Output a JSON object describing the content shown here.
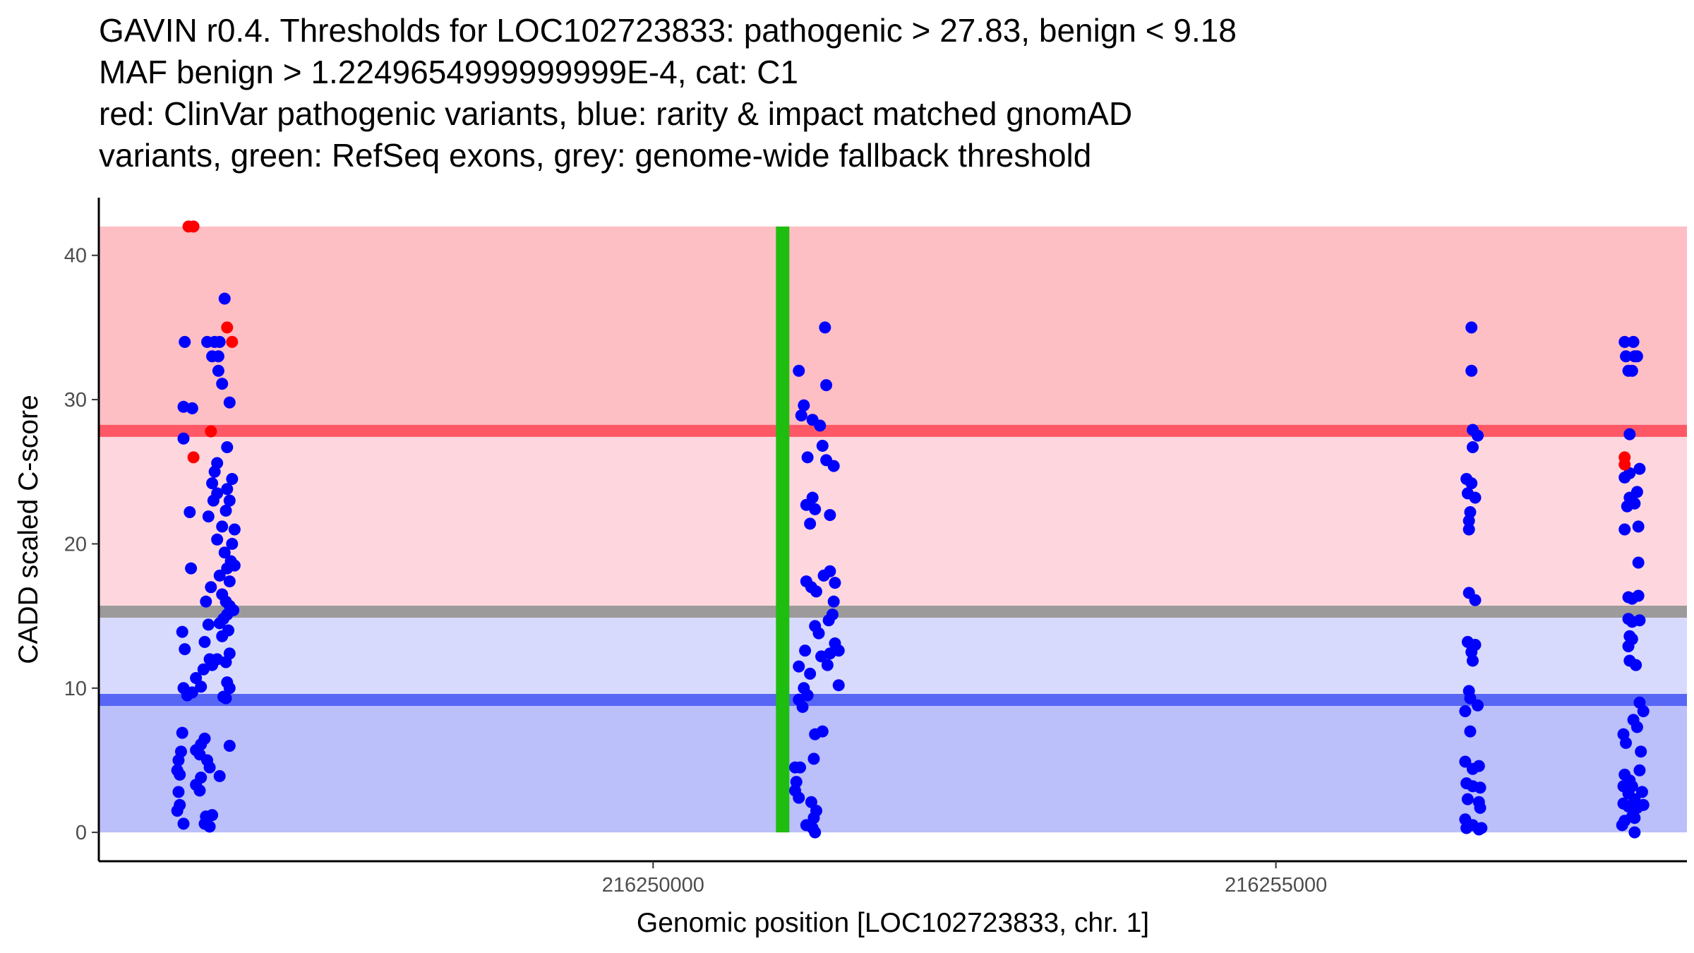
{
  "chart_data": {
    "type": "scatter",
    "title_lines": [
      "GAVIN r0.4. Thresholds for LOC102723833: pathogenic > 27.83, benign < 9.18",
      "MAF benign > 1.2249654999999999E-4, cat: C1",
      "red: ClinVar pathogenic variants, blue: rarity & impact matched gnomAD",
      "variants, green: RefSeq exons, grey: genome-wide fallback threshold"
    ],
    "xlabel": "Genomic position [LOC102723833, chr. 1]",
    "ylabel": "CADD scaled C-score",
    "xlim": [
      216245550,
      216258300
    ],
    "ylim": [
      -2,
      44
    ],
    "x_ticks": [
      216250000,
      216255000
    ],
    "x_tick_labels": [
      "216250000",
      "216255000"
    ],
    "y_ticks": [
      0,
      10,
      20,
      30,
      40
    ],
    "y_tick_labels": [
      "0",
      "10",
      "20",
      "30",
      "40"
    ],
    "grid": false,
    "bands": [
      {
        "name": "pathogenic-region",
        "y0": 27.83,
        "y1": 42,
        "color": "#fdbec4"
      },
      {
        "name": "grey-zone-upper",
        "y0": 15.3,
        "y1": 27.83,
        "color": "#fdd7dd"
      },
      {
        "name": "grey-zone-lower",
        "y0": 9.18,
        "y1": 15.3,
        "color": "#d8dafd"
      },
      {
        "name": "benign-region",
        "y0": 0,
        "y1": 9.18,
        "color": "#bbbffa"
      }
    ],
    "threshold_lines": [
      {
        "name": "pathogenic-threshold",
        "y": 27.83,
        "color": "#fe5867"
      },
      {
        "name": "fallback-threshold",
        "y": 15.3,
        "color": "#9c9a9a"
      },
      {
        "name": "benign-threshold",
        "y": 9.18,
        "color": "#5766f5"
      }
    ],
    "exons": [
      {
        "name": "refseq-exon",
        "x": 216251040,
        "y0": 0,
        "y1": 42,
        "color": "#1fbd0f"
      }
    ],
    "series": [
      {
        "name": "ClinVar pathogenic variants",
        "color": "#ff0000",
        "points": [
          [
            216246270,
            42
          ],
          [
            216246310,
            42
          ],
          [
            216246580,
            35
          ],
          [
            216246620,
            34
          ],
          [
            216246450,
            27.8
          ],
          [
            216246310,
            26
          ]
        ]
      },
      {
        "name": "gnomAD matched variants",
        "color": "#0000ff",
        "points": [
          [
            216246240,
            34
          ],
          [
            216246230,
            29.5
          ],
          [
            216246300,
            29.4
          ],
          [
            216246230,
            27.3
          ],
          [
            216246280,
            22.2
          ],
          [
            216246290,
            18.3
          ],
          [
            216246220,
            13.9
          ],
          [
            216246240,
            12.7
          ],
          [
            216246230,
            10
          ],
          [
            216246300,
            9.7
          ],
          [
            216246260,
            9.5
          ],
          [
            216246220,
            6.9
          ],
          [
            216246210,
            5.6
          ],
          [
            216246190,
            5
          ],
          [
            216246180,
            4.3
          ],
          [
            216246200,
            4
          ],
          [
            216246190,
            2.8
          ],
          [
            216246200,
            1.9
          ],
          [
            216246180,
            1.5
          ],
          [
            216246230,
            0.6
          ],
          [
            216246400,
            6.5
          ],
          [
            216246370,
            6.1
          ],
          [
            216246330,
            5.7
          ],
          [
            216246360,
            5.4
          ],
          [
            216246420,
            5
          ],
          [
            216246440,
            4.5
          ],
          [
            216246370,
            3.8
          ],
          [
            216246330,
            3.3
          ],
          [
            216246360,
            2.9
          ],
          [
            216246410,
            1.1
          ],
          [
            216246400,
            0.6
          ],
          [
            216246370,
            10.1
          ],
          [
            216246330,
            10.7
          ],
          [
            216246390,
            11.3
          ],
          [
            216246440,
            12
          ],
          [
            216246400,
            13.2
          ],
          [
            216246430,
            14.4
          ],
          [
            216246410,
            16
          ],
          [
            216246450,
            17
          ],
          [
            216246430,
            21.9
          ],
          [
            216246470,
            23
          ],
          [
            216246500,
            23.5
          ],
          [
            216246460,
            24.2
          ],
          [
            216246480,
            25
          ],
          [
            216246500,
            25.6
          ],
          [
            216246420,
            34
          ],
          [
            216246480,
            34
          ],
          [
            216246520,
            34
          ],
          [
            216246510,
            33
          ],
          [
            216246460,
            33
          ],
          [
            216246540,
            31.1
          ],
          [
            216246510,
            32
          ],
          [
            216246560,
            37
          ],
          [
            216246600,
            29.8
          ],
          [
            216246580,
            26.7
          ],
          [
            216246620,
            24.5
          ],
          [
            216246580,
            23.8
          ],
          [
            216246600,
            23
          ],
          [
            216246570,
            22.3
          ],
          [
            216246540,
            21.2
          ],
          [
            216246500,
            20.3
          ],
          [
            216246620,
            20
          ],
          [
            216246560,
            19.4
          ],
          [
            216246640,
            21
          ],
          [
            216246610,
            18.8
          ],
          [
            216246640,
            18.5
          ],
          [
            216246580,
            18.3
          ],
          [
            216246520,
            17.8
          ],
          [
            216246600,
            17.4
          ],
          [
            216246540,
            16.5
          ],
          [
            216246570,
            16
          ],
          [
            216246600,
            15.7
          ],
          [
            216246630,
            15.4
          ],
          [
            216246580,
            15.1
          ],
          [
            216246550,
            14.8
          ],
          [
            216246520,
            14.5
          ],
          [
            216246590,
            14
          ],
          [
            216246540,
            13.6
          ],
          [
            216246600,
            12.4
          ],
          [
            216246570,
            11.8
          ],
          [
            216246500,
            12
          ],
          [
            216246460,
            11.6
          ],
          [
            216246580,
            10.4
          ],
          [
            216246600,
            10
          ],
          [
            216246550,
            9.4
          ],
          [
            216246570,
            9.3
          ],
          [
            216246600,
            6
          ],
          [
            216246520,
            3.9
          ],
          [
            216246460,
            1.2
          ],
          [
            216246440,
            0.4
          ],
          [
            216251380,
            35
          ],
          [
            216251170,
            32
          ],
          [
            216251390,
            31
          ],
          [
            216251210,
            29.6
          ],
          [
            216251190,
            28.9
          ],
          [
            216251280,
            28.6
          ],
          [
            216251340,
            28.2
          ],
          [
            216251360,
            26.8
          ],
          [
            216251240,
            26
          ],
          [
            216251390,
            25.8
          ],
          [
            216251450,
            25.4
          ],
          [
            216251280,
            23.2
          ],
          [
            216251230,
            22.7
          ],
          [
            216251300,
            22.4
          ],
          [
            216251420,
            22
          ],
          [
            216251260,
            21.4
          ],
          [
            216251420,
            18.1
          ],
          [
            216251370,
            17.8
          ],
          [
            216251230,
            17.4
          ],
          [
            216251460,
            17.3
          ],
          [
            216251270,
            17
          ],
          [
            216251310,
            16.7
          ],
          [
            216251450,
            16
          ],
          [
            216251440,
            15.1
          ],
          [
            216251410,
            14.7
          ],
          [
            216251300,
            14.3
          ],
          [
            216251330,
            13.8
          ],
          [
            216251460,
            13.1
          ],
          [
            216251220,
            12.6
          ],
          [
            216251420,
            12.4
          ],
          [
            216251490,
            12.6
          ],
          [
            216251350,
            12.2
          ],
          [
            216251170,
            11.5
          ],
          [
            216251260,
            11
          ],
          [
            216251400,
            11.6
          ],
          [
            216251490,
            10.2
          ],
          [
            216251210,
            10
          ],
          [
            216251240,
            9.5
          ],
          [
            216251170,
            9.2
          ],
          [
            216251200,
            8.7
          ],
          [
            216251360,
            7
          ],
          [
            216251300,
            6.8
          ],
          [
            216251290,
            5.1
          ],
          [
            216251140,
            4.5
          ],
          [
            216251180,
            4.5
          ],
          [
            216251150,
            3.5
          ],
          [
            216251140,
            2.9
          ],
          [
            216251170,
            2.4
          ],
          [
            216251270,
            2.1
          ],
          [
            216251310,
            1.5
          ],
          [
            216251290,
            1
          ],
          [
            216251230,
            0.5
          ],
          [
            216251280,
            0.3
          ],
          [
            216251300,
            0
          ],
          [
            216256570,
            35
          ],
          [
            216256570,
            32
          ],
          [
            216256580,
            27.9
          ],
          [
            216256620,
            27.5
          ],
          [
            216256580,
            26.7
          ],
          [
            216256530,
            24.5
          ],
          [
            216256570,
            24.2
          ],
          [
            216256540,
            23.5
          ],
          [
            216256600,
            23.2
          ],
          [
            216256560,
            22.2
          ],
          [
            216256550,
            21.6
          ],
          [
            216256550,
            21
          ],
          [
            216256550,
            16.6
          ],
          [
            216256600,
            16.1
          ],
          [
            216256540,
            13.2
          ],
          [
            216256600,
            13
          ],
          [
            216256570,
            12.5
          ],
          [
            216256580,
            11.9
          ],
          [
            216256550,
            9.8
          ],
          [
            216256560,
            9.3
          ],
          [
            216256620,
            8.8
          ],
          [
            216256520,
            8.4
          ],
          [
            216256560,
            7
          ],
          [
            216256520,
            4.9
          ],
          [
            216256580,
            4.4
          ],
          [
            216256630,
            4.6
          ],
          [
            216256530,
            3.4
          ],
          [
            216256580,
            3.2
          ],
          [
            216256640,
            3.1
          ],
          [
            216256540,
            2.3
          ],
          [
            216256630,
            2.1
          ],
          [
            216256640,
            1.7
          ],
          [
            216256520,
            0.9
          ],
          [
            216256580,
            0.5
          ],
          [
            216256530,
            0.3
          ],
          [
            216256630,
            0.2
          ],
          [
            216256650,
            0.3
          ],
          [
            216257800,
            34
          ],
          [
            216257870,
            34
          ],
          [
            216257900,
            33
          ],
          [
            216257810,
            33
          ],
          [
            216257880,
            33
          ],
          [
            216257830,
            32
          ],
          [
            216257860,
            32
          ],
          [
            216257840,
            27.6
          ],
          [
            216257920,
            25.2
          ],
          [
            216257800,
            24.6
          ],
          [
            216257840,
            24.9
          ],
          [
            216257900,
            23.6
          ],
          [
            216257840,
            23.2
          ],
          [
            216257880,
            22.8
          ],
          [
            216257820,
            22.6
          ],
          [
            216257800,
            21
          ],
          [
            216257910,
            21.2
          ],
          [
            216257910,
            18.7
          ],
          [
            216257830,
            16.3
          ],
          [
            216257860,
            16.2
          ],
          [
            216257910,
            16.4
          ],
          [
            216257830,
            14.8
          ],
          [
            216257860,
            14.6
          ],
          [
            216257920,
            14.7
          ],
          [
            216257840,
            13.6
          ],
          [
            216257860,
            13.4
          ],
          [
            216257830,
            12.9
          ],
          [
            216257840,
            11.9
          ],
          [
            216257890,
            11.6
          ],
          [
            216257920,
            9
          ],
          [
            216257950,
            8.4
          ],
          [
            216257870,
            7.8
          ],
          [
            216257900,
            7.3
          ],
          [
            216257790,
            6.8
          ],
          [
            216257810,
            6.2
          ],
          [
            216257930,
            5.6
          ],
          [
            216257920,
            4.3
          ],
          [
            216257800,
            4
          ],
          [
            216257840,
            3.6
          ],
          [
            216257790,
            3.2
          ],
          [
            216257860,
            3.2
          ],
          [
            216257830,
            2.7
          ],
          [
            216257940,
            2.8
          ],
          [
            216257880,
            2.3
          ],
          [
            216257790,
            2
          ],
          [
            216257830,
            1.8
          ],
          [
            216257900,
            1.7
          ],
          [
            216257950,
            1.9
          ],
          [
            216257860,
            1.1
          ],
          [
            216257800,
            0.8
          ],
          [
            216257880,
            1
          ],
          [
            216257780,
            0.5
          ],
          [
            216257880,
            0
          ]
        ]
      },
      {
        "name": "ClinVar pathogenic variants (overlay)",
        "color": "#ff0000",
        "points": [
          [
            216257800,
            26
          ],
          [
            216257800,
            25.5
          ]
        ]
      }
    ]
  }
}
